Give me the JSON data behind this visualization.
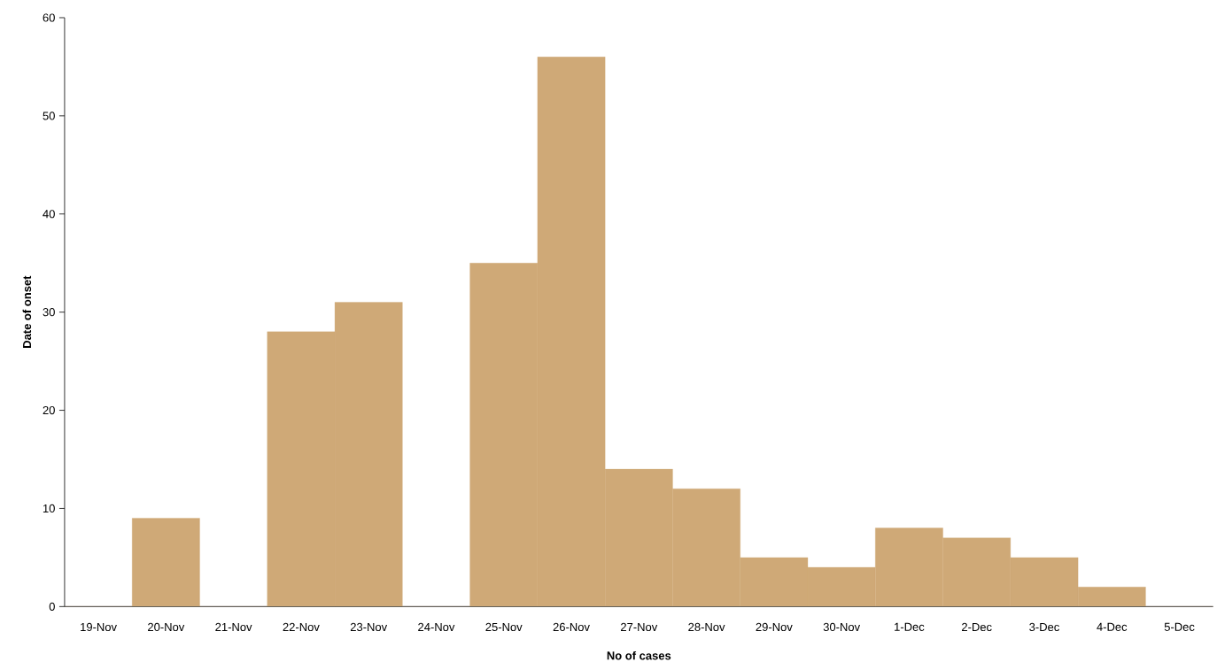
{
  "chart_data": {
    "type": "bar",
    "xlabel": "No of cases",
    "ylabel": "Date of onset",
    "categories": [
      "19-Nov",
      "20-Nov",
      "21-Nov",
      "22-Nov",
      "23-Nov",
      "24-Nov",
      "25-Nov",
      "26-Nov",
      "27-Nov",
      "28-Nov",
      "29-Nov",
      "30-Nov",
      "1-Dec",
      "2-Dec",
      "3-Dec",
      "4-Dec",
      "5-Dec"
    ],
    "values": [
      0,
      9,
      0,
      28,
      31,
      0,
      35,
      56,
      14,
      12,
      5,
      4,
      8,
      7,
      5,
      2,
      0
    ],
    "color": "#cfa977",
    "ylim": [
      0,
      60
    ],
    "yticks": [
      0,
      10,
      20,
      30,
      40,
      50,
      60
    ],
    "grid": false
  }
}
